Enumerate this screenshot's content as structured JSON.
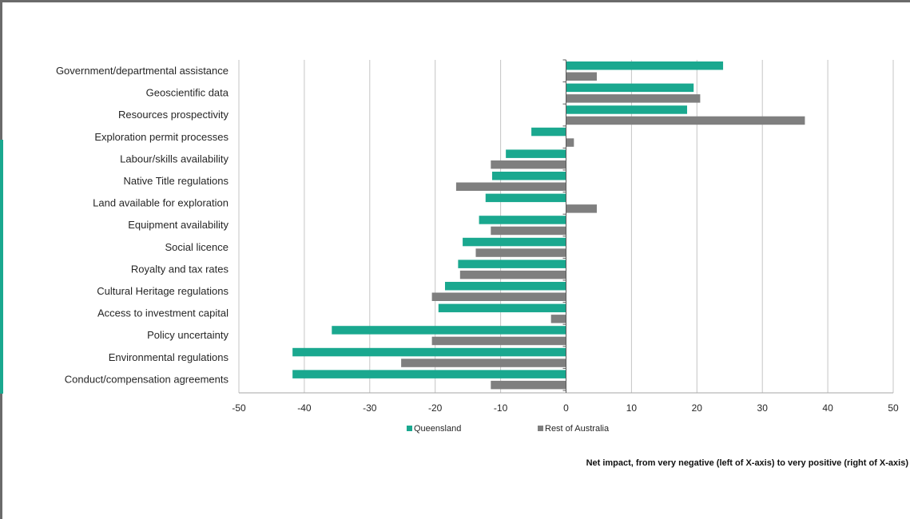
{
  "chart_data": {
    "type": "bar",
    "orientation": "horizontal",
    "categories": [
      "Government/departmental assistance",
      "Geoscientific data",
      "Resources prospectivity",
      "Exploration permit processes",
      "Labour/skills availability",
      "Native Title regulations",
      "Land available for exploration",
      "Equipment availability",
      "Social licence",
      "Royalty and tax rates",
      "Cultural Heritage regulations",
      "Access to investment capital",
      "Policy uncertainty",
      "Environmental regulations",
      "Conduct/compensation agreements"
    ],
    "series": [
      {
        "name": "Queensland",
        "color": "#1aa88f",
        "values": [
          24,
          19.5,
          18.5,
          -5.3,
          -9.2,
          -11.3,
          -12.3,
          -13.3,
          -15.8,
          -16.5,
          -18.5,
          -19.5,
          -35.8,
          -41.8,
          -41.8
        ]
      },
      {
        "name": "Rest of Australia",
        "color": "#7f7f7f",
        "values": [
          4.7,
          20.5,
          36.5,
          1.2,
          -11.5,
          -16.8,
          4.7,
          -11.5,
          -13.8,
          -16.2,
          -20.5,
          -2.3,
          -20.5,
          -25.2,
          -11.5
        ]
      }
    ],
    "xlim": [
      -50,
      50
    ],
    "xticks": [
      "-50",
      "-40",
      "-30",
      "-20",
      "-10",
      "0",
      "10",
      "20",
      "30",
      "40",
      "50"
    ],
    "grid": "vertical",
    "legend_position": "bottom",
    "annotation": "Net impact, from very negative (left of X-axis) to very positive (right of X-axis)"
  }
}
